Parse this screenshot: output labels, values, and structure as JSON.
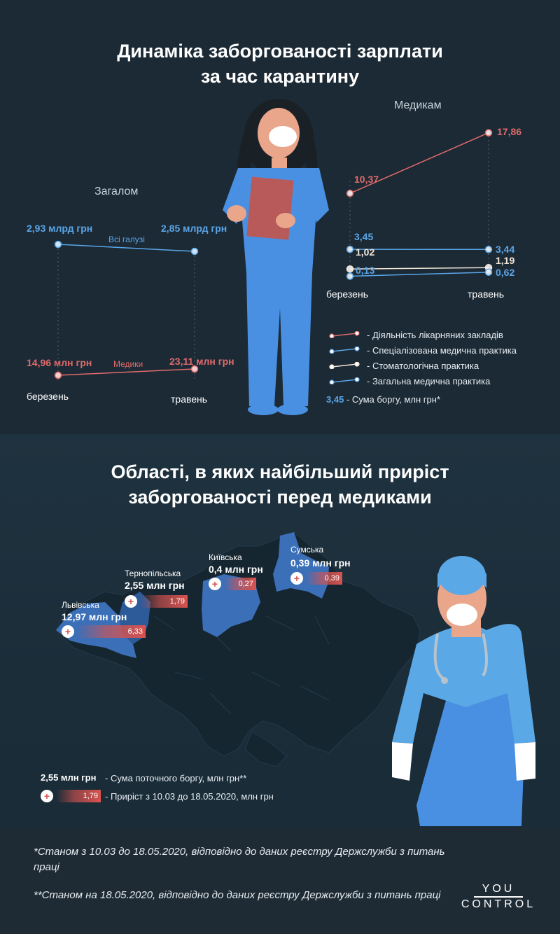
{
  "section1": {
    "title_line1": "Динаміка заборгованості зарплати",
    "title_line2": "за час карантину"
  },
  "section2": {
    "title_line1": "Області, в яких найбільший приріст",
    "title_line2": "заборгованості перед медиками"
  },
  "colors": {
    "background": "#1c2a35",
    "blue": "#5aa5e8",
    "red": "#e06b6b",
    "cream": "#f2e6d8",
    "map_base": "#152630",
    "map_highlight": "#3b6fb8"
  },
  "chart_data": [
    {
      "type": "line",
      "title": "Загалом",
      "categories": [
        "березень",
        "травень"
      ],
      "series": [
        {
          "name": "Всі галузі",
          "values": [
            2.93,
            2.85
          ],
          "labels": [
            "2,93 млрд грн",
            "2,85 млрд грн"
          ],
          "color": "#5aa5e8"
        },
        {
          "name": "Медики",
          "values": [
            14.96,
            23.11
          ],
          "labels": [
            "14,96 млн грн",
            "23,11 млн грн"
          ],
          "color": "#e06b6b"
        }
      ]
    },
    {
      "type": "line",
      "title": "Медикам",
      "categories": [
        "березень",
        "травень"
      ],
      "ylim": [
        0,
        18
      ],
      "series": [
        {
          "name": "Діяльність лікарняних закладів",
          "values": [
            10.37,
            17.86
          ],
          "labels": [
            "10,37",
            "17,86"
          ],
          "color": "#e06b6b"
        },
        {
          "name": "Спеціалізована медична практика",
          "values": [
            3.45,
            3.44
          ],
          "labels": [
            "3,45",
            "3,44"
          ],
          "color": "#5aa5e8"
        },
        {
          "name": "Стоматологічна практика",
          "values": [
            1.02,
            1.19
          ],
          "labels": [
            "1,02",
            "1,19"
          ],
          "color": "#f2e6d8"
        },
        {
          "name": "Загальна медична практика",
          "values": [
            0.13,
            0.62
          ],
          "labels": [
            "0,13",
            "0,62"
          ],
          "color": "#5aa5e8"
        }
      ],
      "note_value": "3,45",
      "note_text": "- Сума боргу, млн грн*"
    },
    {
      "type": "map",
      "regions": [
        {
          "name": "Львівська",
          "debt": "12,97 млн грн",
          "growth": 6.33,
          "growth_label": "6,33"
        },
        {
          "name": "Тернопільська",
          "debt": "2,55 млн грн",
          "growth": 1.79,
          "growth_label": "1,79"
        },
        {
          "name": "Київська",
          "debt": "0,4 млн грн",
          "growth": 0.27,
          "growth_label": "0,27"
        },
        {
          "name": "Сумська",
          "debt": "0,39 млн грн",
          "growth": 0.39,
          "growth_label": "0,39"
        }
      ],
      "legend": {
        "debt_sample": "2,55 млн грн",
        "debt_text": "- Сума поточного боргу, млн грн**",
        "growth_sample": "1,79",
        "growth_text": "- Приріст з 10.03 до 18.05.2020, млн грн"
      }
    }
  ],
  "footer": {
    "note1": "*Станом з 10.03 до 18.05.2020, відповідно до даних реєстру Держслужби з питань праці",
    "note2": "**Станом на 18.05.2020, відповідно до даних реєстру Держслужби з питань праці",
    "logo_top": "YOU",
    "logo_bottom": "CONTROL"
  }
}
